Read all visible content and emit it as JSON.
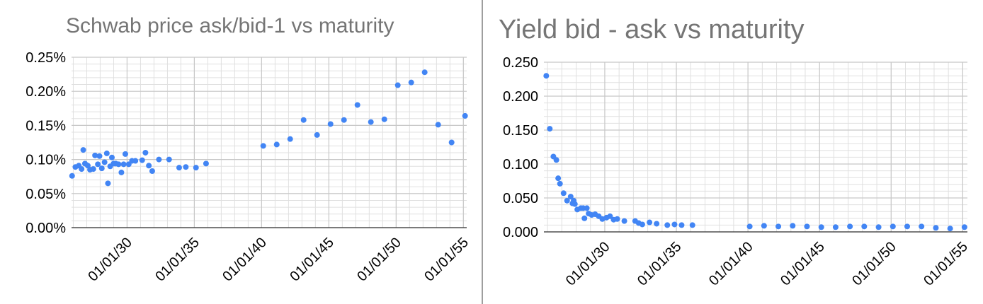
{
  "chart_data": [
    {
      "type": "scatter",
      "title": "Schwab price ask/bid-1 vs maturity",
      "xlabel": "",
      "ylabel": "",
      "y_format": "percent",
      "ylim": [
        0,
        0.0025
      ],
      "y_ticks": [
        0,
        0.0005,
        0.001,
        0.0015,
        0.002,
        0.0025
      ],
      "y_tick_labels": [
        "0.00%",
        "0.05%",
        "0.10%",
        "0.15%",
        "0.20%",
        "0.25%"
      ],
      "xlim": [
        "2025-11-15",
        "2055-04-01"
      ],
      "x_ticks": [
        "2030-01-01",
        "2035-01-01",
        "2040-01-01",
        "2045-01-01",
        "2050-01-01",
        "2055-01-01"
      ],
      "x_tick_labels": [
        "01/01/30",
        "01/01/35",
        "01/01/40",
        "01/01/45",
        "01/01/50",
        "01/01/55"
      ],
      "grid": true,
      "color": "#4285f4",
      "points": [
        [
          "2025-11-30",
          0.00076
        ],
        [
          "2026-02-28",
          0.00089
        ],
        [
          "2026-05-31",
          0.00091
        ],
        [
          "2026-08-15",
          0.00086
        ],
        [
          "2026-09-30",
          0.00114
        ],
        [
          "2026-11-15",
          0.00094
        ],
        [
          "2027-01-31",
          0.00091
        ],
        [
          "2027-03-31",
          0.00085
        ],
        [
          "2027-06-30",
          0.00086
        ],
        [
          "2027-08-15",
          0.00106
        ],
        [
          "2027-10-31",
          0.00093
        ],
        [
          "2027-12-15",
          0.00105
        ],
        [
          "2028-02-15",
          0.00087
        ],
        [
          "2028-04-30",
          0.00096
        ],
        [
          "2028-06-30",
          0.00109
        ],
        [
          "2028-07-31",
          0.00065
        ],
        [
          "2028-09-30",
          0.0009
        ],
        [
          "2028-11-15",
          0.00103
        ],
        [
          "2028-12-31",
          0.00094
        ],
        [
          "2029-02-28",
          0.00094
        ],
        [
          "2029-05-15",
          0.00093
        ],
        [
          "2029-07-31",
          0.00081
        ],
        [
          "2029-09-30",
          0.00093
        ],
        [
          "2029-11-15",
          0.00108
        ],
        [
          "2030-02-15",
          0.00093
        ],
        [
          "2030-05-15",
          0.00098
        ],
        [
          "2030-08-15",
          0.00098
        ],
        [
          "2031-02-15",
          0.00099
        ],
        [
          "2031-05-15",
          0.0011
        ],
        [
          "2031-08-15",
          0.00091
        ],
        [
          "2031-11-15",
          0.00083
        ],
        [
          "2032-05-15",
          0.001
        ],
        [
          "2033-02-15",
          0.001
        ],
        [
          "2033-11-15",
          0.00088
        ],
        [
          "2034-05-15",
          0.00089
        ],
        [
          "2035-02-15",
          0.00088
        ],
        [
          "2035-11-15",
          0.00094
        ],
        [
          "2040-02-15",
          0.0012
        ],
        [
          "2041-02-15",
          0.00122
        ],
        [
          "2042-02-15",
          0.0013
        ],
        [
          "2043-02-15",
          0.00158
        ],
        [
          "2044-02-15",
          0.00136
        ],
        [
          "2045-02-15",
          0.00152
        ],
        [
          "2046-02-15",
          0.00158
        ],
        [
          "2047-02-15",
          0.0018
        ],
        [
          "2048-02-15",
          0.00155
        ],
        [
          "2049-02-15",
          0.00159
        ],
        [
          "2050-02-15",
          0.00209
        ],
        [
          "2051-02-15",
          0.00213
        ],
        [
          "2052-02-15",
          0.00228
        ],
        [
          "2053-02-15",
          0.00151
        ],
        [
          "2054-02-15",
          0.00125
        ],
        [
          "2055-02-15",
          0.00164
        ]
      ]
    },
    {
      "type": "scatter",
      "title": "Yield bid - ask vs maturity",
      "xlabel": "",
      "ylabel": "",
      "y_format": "fixed3",
      "ylim": [
        0,
        0.25
      ],
      "y_ticks": [
        0,
        0.05,
        0.1,
        0.15,
        0.2,
        0.25
      ],
      "y_tick_labels": [
        "0.000",
        "0.050",
        "0.100",
        "0.150",
        "0.200",
        "0.250"
      ],
      "xlim": [
        "2025-10-01",
        "2055-05-01"
      ],
      "x_ticks": [
        "2030-01-01",
        "2035-01-01",
        "2040-01-01",
        "2045-01-01",
        "2050-01-01",
        "2055-01-01"
      ],
      "x_tick_labels": [
        "01/01/30",
        "01/01/35",
        "01/01/40",
        "01/01/45",
        "01/01/50",
        "01/01/55"
      ],
      "grid": true,
      "color": "#4285f4",
      "points": [
        [
          "2025-11-30",
          0.23
        ],
        [
          "2026-02-28",
          0.152
        ],
        [
          "2026-05-31",
          0.111
        ],
        [
          "2026-08-15",
          0.106
        ],
        [
          "2026-09-30",
          0.079
        ],
        [
          "2026-11-15",
          0.071
        ],
        [
          "2027-02-15",
          0.057
        ],
        [
          "2027-05-15",
          0.046
        ],
        [
          "2027-08-15",
          0.052
        ],
        [
          "2027-09-30",
          0.042
        ],
        [
          "2027-10-31",
          0.046
        ],
        [
          "2027-11-30",
          0.041
        ],
        [
          "2028-01-31",
          0.033
        ],
        [
          "2028-04-30",
          0.035
        ],
        [
          "2028-06-30",
          0.035
        ],
        [
          "2028-07-31",
          0.02
        ],
        [
          "2028-09-30",
          0.035
        ],
        [
          "2028-11-15",
          0.027
        ],
        [
          "2029-01-31",
          0.025
        ],
        [
          "2029-04-30",
          0.026
        ],
        [
          "2029-07-31",
          0.023
        ],
        [
          "2029-10-31",
          0.019
        ],
        [
          "2030-02-15",
          0.021
        ],
        [
          "2030-05-15",
          0.023
        ],
        [
          "2030-08-15",
          0.018
        ],
        [
          "2030-11-15",
          0.019
        ],
        [
          "2031-05-15",
          0.016
        ],
        [
          "2032-02-15",
          0.016
        ],
        [
          "2032-05-15",
          0.013
        ],
        [
          "2032-08-15",
          0.011
        ],
        [
          "2033-02-15",
          0.014
        ],
        [
          "2033-08-15",
          0.012
        ],
        [
          "2034-05-15",
          0.01
        ],
        [
          "2034-11-15",
          0.011
        ],
        [
          "2035-05-15",
          0.01
        ],
        [
          "2036-02-15",
          0.01
        ],
        [
          "2040-02-15",
          0.008
        ],
        [
          "2041-02-15",
          0.009
        ],
        [
          "2042-02-15",
          0.008
        ],
        [
          "2043-02-15",
          0.009
        ],
        [
          "2044-02-15",
          0.008
        ],
        [
          "2045-02-15",
          0.007
        ],
        [
          "2046-02-15",
          0.007
        ],
        [
          "2047-02-15",
          0.008
        ],
        [
          "2048-02-15",
          0.008
        ],
        [
          "2049-02-15",
          0.007
        ],
        [
          "2050-02-15",
          0.008
        ],
        [
          "2051-02-15",
          0.008
        ],
        [
          "2052-02-15",
          0.008
        ],
        [
          "2053-02-15",
          0.006
        ],
        [
          "2054-02-15",
          0.005
        ],
        [
          "2055-02-15",
          0.007
        ]
      ]
    }
  ]
}
